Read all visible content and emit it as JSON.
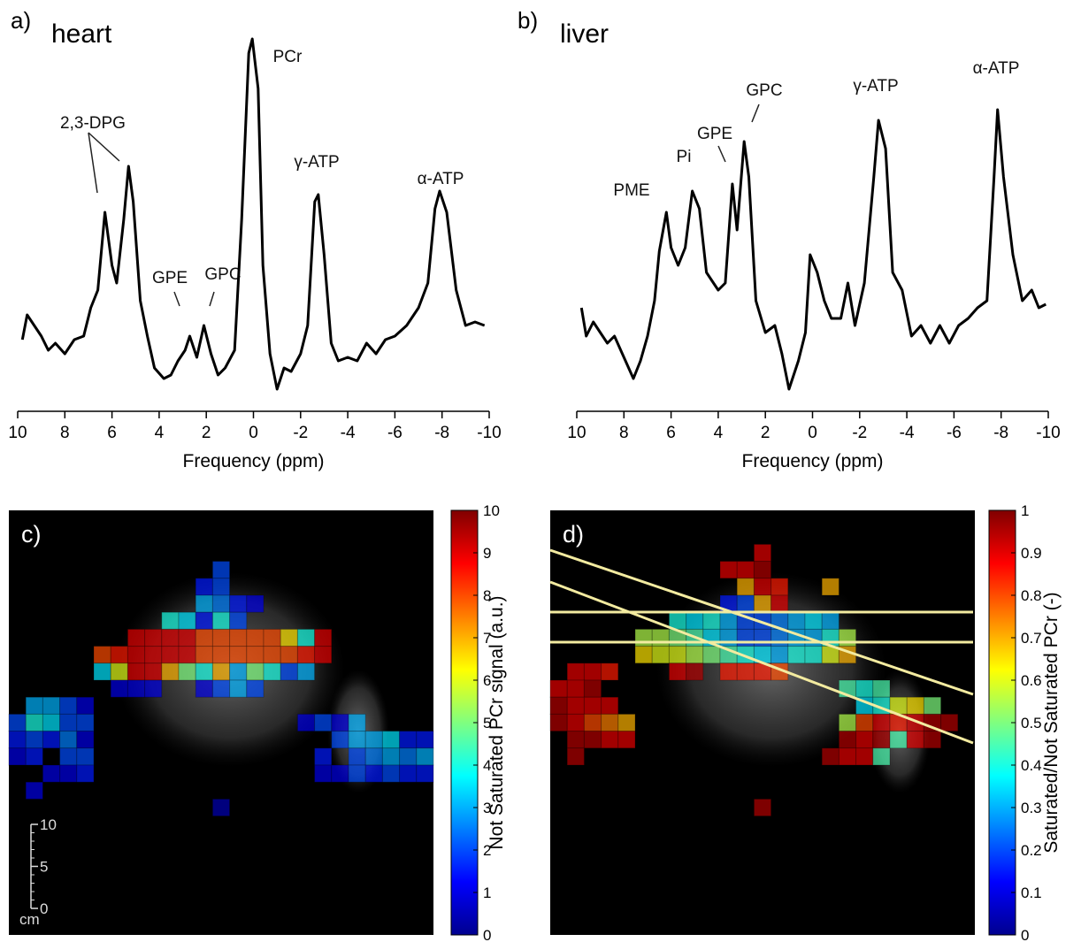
{
  "chart_data": [
    {
      "type": "line",
      "panel_label": "a)",
      "title": "heart",
      "xlabel": "Frequency (ppm)",
      "annotations": [
        "2,3-DPG",
        "GPE",
        "GPC",
        "PCr",
        "γ-ATP",
        "α-ATP"
      ],
      "xlim": [
        10,
        -10
      ],
      "xticks": [
        10,
        8,
        6,
        4,
        2,
        0,
        -2,
        -4,
        -6,
        -8,
        -10
      ],
      "ylim": [
        0,
        100
      ],
      "color": "#000000",
      "x": [
        9.8,
        9.6,
        9.3,
        9.0,
        8.7,
        8.4,
        8.0,
        7.6,
        7.2,
        6.9,
        6.6,
        6.3,
        6.0,
        5.8,
        5.5,
        5.3,
        5.1,
        4.8,
        4.5,
        4.2,
        3.8,
        3.5,
        3.2,
        2.9,
        2.7,
        2.4,
        2.1,
        1.8,
        1.5,
        1.2,
        0.8,
        0.5,
        0.2,
        0.05,
        -0.2,
        -0.4,
        -0.7,
        -1.0,
        -1.3,
        -1.6,
        -2.0,
        -2.3,
        -2.6,
        -2.75,
        -3.0,
        -3.3,
        -3.6,
        -4.0,
        -4.4,
        -4.8,
        -5.2,
        -5.6,
        -6.0,
        -6.5,
        -7.0,
        -7.4,
        -7.7,
        -7.9,
        -8.2,
        -8.6,
        -9.0,
        -9.4,
        -9.8
      ],
      "values": [
        14,
        21,
        18,
        15,
        11,
        13,
        10,
        14,
        15,
        23,
        28,
        50,
        35,
        30,
        48,
        63,
        53,
        25,
        15,
        6,
        3,
        4,
        8,
        11,
        15,
        9,
        18,
        10,
        4,
        6,
        11,
        48,
        95,
        99,
        85,
        35,
        10,
        0,
        6,
        5,
        10,
        18,
        53,
        55,
        38,
        13,
        8,
        9,
        8,
        13,
        10,
        14,
        15,
        18,
        23,
        30,
        51,
        56,
        50,
        28,
        18,
        19,
        18
      ]
    },
    {
      "type": "line",
      "panel_label": "b)",
      "title": "liver",
      "xlabel": "Frequency (ppm)",
      "annotations": [
        "PME",
        "Pi",
        "GPE",
        "GPC",
        "γ-ATP",
        "α-ATP"
      ],
      "xlim": [
        10,
        -10
      ],
      "xticks": [
        10,
        8,
        6,
        4,
        2,
        0,
        -2,
        -4,
        -6,
        -8,
        -10
      ],
      "ylim": [
        0,
        100
      ],
      "color": "#000000",
      "x": [
        9.8,
        9.6,
        9.3,
        9.0,
        8.7,
        8.4,
        8.0,
        7.6,
        7.3,
        7.0,
        6.7,
        6.5,
        6.2,
        6.0,
        5.7,
        5.4,
        5.1,
        4.8,
        4.5,
        4.3,
        4.0,
        3.7,
        3.4,
        3.2,
        2.9,
        2.7,
        2.4,
        2.0,
        1.6,
        1.3,
        1.0,
        0.6,
        0.3,
        0.1,
        -0.2,
        -0.5,
        -0.8,
        -1.2,
        -1.5,
        -1.8,
        -2.2,
        -2.6,
        -2.8,
        -3.1,
        -3.4,
        -3.8,
        -4.2,
        -4.6,
        -5.0,
        -5.4,
        -5.8,
        -6.2,
        -6.6,
        -7.0,
        -7.4,
        -7.7,
        -7.85,
        -8.1,
        -8.5,
        -8.9,
        -9.3,
        -9.6,
        -9.9
      ],
      "values": [
        23,
        15,
        19,
        16,
        13,
        15,
        9,
        3,
        8,
        15,
        25,
        39,
        50,
        40,
        35,
        40,
        56,
        51,
        33,
        31,
        28,
        30,
        58,
        45,
        70,
        60,
        25,
        16,
        18,
        10,
        0,
        8,
        16,
        38,
        33,
        25,
        20,
        20,
        30,
        18,
        30,
        60,
        76,
        68,
        33,
        28,
        15,
        18,
        13,
        18,
        13,
        18,
        20,
        23,
        25,
        60,
        79,
        60,
        38,
        25,
        28,
        23,
        24
      ]
    },
    {
      "type": "heatmap",
      "panel_label": "c)",
      "colorbar_label": "Not Saturated PCr signal (a.u.)",
      "zlim": [
        0,
        10
      ],
      "zticks": [
        0,
        1,
        2,
        3,
        4,
        5,
        6,
        7,
        8,
        9,
        10
      ],
      "scale_bar": {
        "ticks": [
          10,
          5,
          0
        ],
        "unit": "cm"
      },
      "cells": [
        [
          12,
          3,
          2
        ],
        [
          11,
          4,
          1.5
        ],
        [
          12,
          4,
          2
        ],
        [
          11,
          5,
          3
        ],
        [
          12,
          5,
          2.5
        ],
        [
          13,
          5,
          1.5
        ],
        [
          14,
          5,
          1
        ],
        [
          9,
          6,
          4
        ],
        [
          10,
          6,
          3.5
        ],
        [
          11,
          6,
          1.5
        ],
        [
          12,
          6,
          4
        ],
        [
          13,
          6,
          2
        ],
        [
          7,
          7,
          9
        ],
        [
          8,
          7,
          9
        ],
        [
          9,
          7,
          9
        ],
        [
          10,
          7,
          9
        ],
        [
          11,
          7,
          8
        ],
        [
          12,
          7,
          8
        ],
        [
          13,
          7,
          8
        ],
        [
          14,
          7,
          8
        ],
        [
          15,
          7,
          8
        ],
        [
          16,
          7,
          6.5
        ],
        [
          17,
          7,
          4
        ],
        [
          18,
          7,
          9
        ],
        [
          5,
          8,
          8
        ],
        [
          6,
          8,
          8.5
        ],
        [
          7,
          8,
          9
        ],
        [
          8,
          8,
          9
        ],
        [
          9,
          8,
          9
        ],
        [
          10,
          8,
          9
        ],
        [
          11,
          8,
          8
        ],
        [
          12,
          8,
          8
        ],
        [
          13,
          8,
          8
        ],
        [
          14,
          8,
          8
        ],
        [
          15,
          8,
          8
        ],
        [
          16,
          8,
          8
        ],
        [
          17,
          8,
          8.5
        ],
        [
          18,
          8,
          9
        ],
        [
          5,
          9,
          3.5
        ],
        [
          6,
          9,
          6
        ],
        [
          7,
          9,
          9
        ],
        [
          8,
          9,
          9
        ],
        [
          9,
          9,
          7
        ],
        [
          10,
          9,
          5
        ],
        [
          11,
          9,
          4
        ],
        [
          12,
          9,
          7
        ],
        [
          13,
          9,
          3
        ],
        [
          14,
          9,
          5
        ],
        [
          15,
          9,
          4
        ],
        [
          16,
          9,
          2
        ],
        [
          17,
          9,
          3
        ],
        [
          6,
          10,
          1
        ],
        [
          7,
          10,
          1
        ],
        [
          8,
          10,
          1
        ],
        [
          11,
          10,
          1
        ],
        [
          12,
          10,
          2
        ],
        [
          13,
          10,
          3
        ],
        [
          14,
          10,
          2
        ],
        [
          1,
          11,
          3
        ],
        [
          2,
          11,
          3
        ],
        [
          3,
          11,
          2
        ],
        [
          4,
          11,
          1
        ],
        [
          0,
          12,
          2
        ],
        [
          1,
          12,
          4
        ],
        [
          2,
          12,
          3.5
        ],
        [
          3,
          12,
          2
        ],
        [
          4,
          12,
          2
        ],
        [
          17,
          12,
          1
        ],
        [
          18,
          12,
          2
        ],
        [
          19,
          12,
          1
        ],
        [
          20,
          12,
          3
        ],
        [
          0,
          13,
          1.5
        ],
        [
          1,
          13,
          2
        ],
        [
          2,
          13,
          1.5
        ],
        [
          3,
          13,
          2.5
        ],
        [
          4,
          13,
          1
        ],
        [
          19,
          13,
          2
        ],
        [
          20,
          13,
          3
        ],
        [
          21,
          13,
          3
        ],
        [
          22,
          13,
          3.5
        ],
        [
          23,
          13,
          1.5
        ],
        [
          24,
          13,
          1.5
        ],
        [
          0,
          14,
          1
        ],
        [
          1,
          14,
          1.5
        ],
        [
          3,
          14,
          2
        ],
        [
          4,
          14,
          2
        ],
        [
          18,
          14,
          1.5
        ],
        [
          20,
          14,
          2
        ],
        [
          21,
          14,
          2.5
        ],
        [
          22,
          14,
          3
        ],
        [
          23,
          14,
          2.5
        ],
        [
          24,
          14,
          3
        ],
        [
          2,
          15,
          1
        ],
        [
          3,
          15,
          1
        ],
        [
          4,
          15,
          1.5
        ],
        [
          18,
          15,
          1
        ],
        [
          19,
          15,
          1
        ],
        [
          20,
          15,
          2
        ],
        [
          21,
          15,
          1.5
        ],
        [
          22,
          15,
          2
        ],
        [
          23,
          15,
          1.5
        ],
        [
          24,
          15,
          1.5
        ],
        [
          1,
          16,
          1
        ],
        [
          12,
          17,
          0.5
        ]
      ]
    },
    {
      "type": "heatmap",
      "panel_label": "d)",
      "colorbar_label": "Saturated/Not Saturated PCr (-)",
      "zlim": [
        0,
        1
      ],
      "zticks": [
        0,
        0.1,
        0.2,
        0.3,
        0.4,
        0.5,
        0.6,
        0.7,
        0.8,
        0.9,
        1
      ],
      "cells": [
        [
          12,
          2,
          0.9
        ],
        [
          10,
          3,
          0.9
        ],
        [
          11,
          3,
          0.9
        ],
        [
          12,
          3,
          0.95
        ],
        [
          11,
          4,
          0.7
        ],
        [
          12,
          4,
          0.9
        ],
        [
          13,
          4,
          0.85
        ],
        [
          16,
          4,
          0.7
        ],
        [
          10,
          5,
          0.15
        ],
        [
          11,
          5,
          0.2
        ],
        [
          12,
          5,
          0.7
        ],
        [
          13,
          5,
          0.9
        ],
        [
          7,
          6,
          0.4
        ],
        [
          8,
          6,
          0.35
        ],
        [
          9,
          6,
          0.4
        ],
        [
          10,
          6,
          0.3
        ],
        [
          11,
          6,
          0.2
        ],
        [
          12,
          6,
          0.2
        ],
        [
          13,
          6,
          0.25
        ],
        [
          14,
          6,
          0.3
        ],
        [
          15,
          6,
          0.35
        ],
        [
          16,
          6,
          0.3
        ],
        [
          5,
          7,
          0.55
        ],
        [
          6,
          7,
          0.55
        ],
        [
          7,
          7,
          0.5
        ],
        [
          8,
          7,
          0.45
        ],
        [
          9,
          7,
          0.35
        ],
        [
          10,
          7,
          0.3
        ],
        [
          11,
          7,
          0.2
        ],
        [
          12,
          7,
          0.2
        ],
        [
          13,
          7,
          0.25
        ],
        [
          14,
          7,
          0.3
        ],
        [
          15,
          7,
          0.3
        ],
        [
          16,
          7,
          0.4
        ],
        [
          17,
          7,
          0.55
        ],
        [
          5,
          8,
          0.65
        ],
        [
          6,
          8,
          0.6
        ],
        [
          7,
          8,
          0.6
        ],
        [
          8,
          8,
          0.55
        ],
        [
          9,
          8,
          0.5
        ],
        [
          10,
          8,
          0.45
        ],
        [
          11,
          8,
          0.4
        ],
        [
          12,
          8,
          0.35
        ],
        [
          13,
          8,
          0.3
        ],
        [
          14,
          8,
          0.4
        ],
        [
          15,
          8,
          0.4
        ],
        [
          16,
          8,
          0.6
        ],
        [
          17,
          8,
          0.7
        ],
        [
          1,
          9,
          0.9
        ],
        [
          2,
          9,
          0.9
        ],
        [
          3,
          9,
          0.85
        ],
        [
          7,
          9,
          0.9
        ],
        [
          8,
          9,
          0.95
        ],
        [
          10,
          9,
          0.85
        ],
        [
          11,
          9,
          0.85
        ],
        [
          12,
          9,
          0.85
        ],
        [
          13,
          9,
          0.8
        ],
        [
          0,
          10,
          0.9
        ],
        [
          1,
          10,
          0.9
        ],
        [
          2,
          10,
          0.95
        ],
        [
          17,
          10,
          0.45
        ],
        [
          18,
          10,
          0.4
        ],
        [
          19,
          10,
          0.45
        ],
        [
          0,
          11,
          0.95
        ],
        [
          1,
          11,
          0.9
        ],
        [
          2,
          11,
          0.9
        ],
        [
          3,
          11,
          0.9
        ],
        [
          18,
          11,
          0.35
        ],
        [
          19,
          11,
          0.4
        ],
        [
          20,
          11,
          0.6
        ],
        [
          21,
          11,
          0.65
        ],
        [
          22,
          11,
          0.5
        ],
        [
          0,
          12,
          0.95
        ],
        [
          1,
          12,
          0.9
        ],
        [
          2,
          12,
          0.8
        ],
        [
          3,
          12,
          0.75
        ],
        [
          4,
          12,
          0.7
        ],
        [
          17,
          12,
          0.55
        ],
        [
          18,
          12,
          0.8
        ],
        [
          19,
          12,
          0.9
        ],
        [
          20,
          12,
          0.85
        ],
        [
          21,
          12,
          0.9
        ],
        [
          22,
          12,
          0.95
        ],
        [
          23,
          12,
          0.95
        ],
        [
          1,
          13,
          0.95
        ],
        [
          2,
          13,
          0.95
        ],
        [
          3,
          13,
          0.9
        ],
        [
          4,
          13,
          0.9
        ],
        [
          17,
          13,
          0.95
        ],
        [
          18,
          13,
          0.9
        ],
        [
          19,
          13,
          0.95
        ],
        [
          20,
          13,
          0.45
        ],
        [
          21,
          13,
          0.9
        ],
        [
          22,
          13,
          0.95
        ],
        [
          1,
          14,
          0.95
        ],
        [
          16,
          14,
          0.95
        ],
        [
          17,
          14,
          0.9
        ],
        [
          18,
          14,
          0.9
        ],
        [
          19,
          14,
          0.45
        ],
        [
          12,
          17,
          0.95
        ]
      ]
    }
  ]
}
